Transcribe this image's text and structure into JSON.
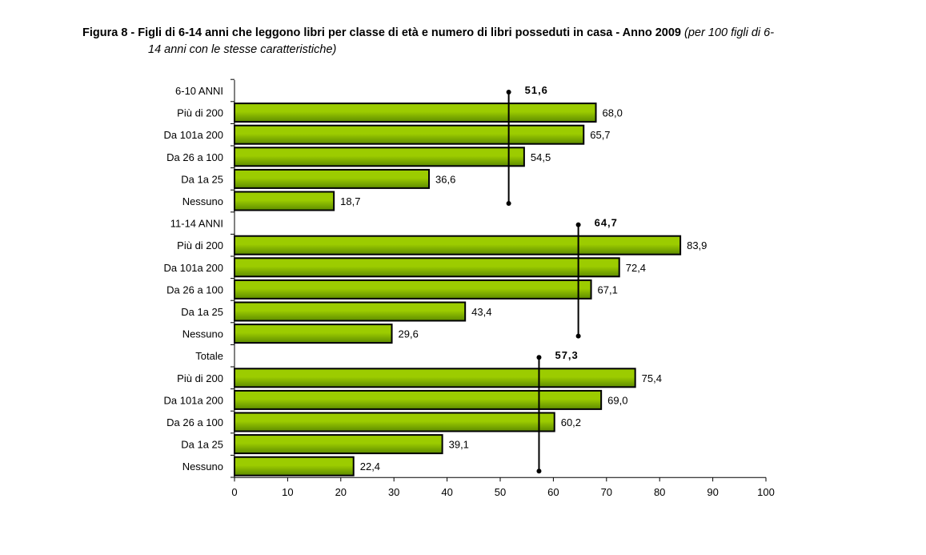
{
  "chart_data": {
    "type": "bar",
    "orientation": "horizontal",
    "title": "Figura 8 - Figli di 6-14 anni che leggono libri per classe di età e numero di libri posseduti in casa - Anno 2009",
    "subtitle_part1": "(per 100 figli di 6-",
    "subtitle_part2": "14 anni con le stesse caratteristiche)",
    "xlim": [
      0,
      100
    ],
    "xticks": [
      0,
      10,
      20,
      30,
      40,
      50,
      60,
      70,
      80,
      90,
      100
    ],
    "colors": {
      "bar_top": "#9ccc00",
      "bar_bottom": "#5e8c00",
      "border": "#000000"
    },
    "groups": [
      {
        "name": "6-10 ANNI",
        "mean": 51.6,
        "mean_label": "51,6",
        "categories": [
          "Più di 200",
          "Da 101a 200",
          "Da 26 a 100",
          "Da 1a 25",
          "Nessuno"
        ],
        "values": [
          68.0,
          65.7,
          54.5,
          36.6,
          18.7
        ],
        "labels": [
          "68,0",
          "65,7",
          "54,5",
          "36,6",
          "18,7"
        ]
      },
      {
        "name": "11-14 ANNI",
        "mean": 64.7,
        "mean_label": "64,7",
        "categories": [
          "Più di 200",
          "Da 101a 200",
          "Da 26 a 100",
          "Da 1a 25",
          "Nessuno"
        ],
        "values": [
          83.9,
          72.4,
          67.1,
          43.4,
          29.6
        ],
        "labels": [
          "83,9",
          "72,4",
          "67,1",
          "43,4",
          "29,6"
        ]
      },
      {
        "name": "Totale",
        "mean": 57.3,
        "mean_label": "57,3",
        "categories": [
          "Più di 200",
          "Da 101a 200",
          "Da 26 a 100",
          "Da 1a 25",
          "Nessuno"
        ],
        "values": [
          75.4,
          69.0,
          60.2,
          39.1,
          22.4
        ],
        "labels": [
          "75,4",
          "69,0",
          "60,2",
          "39,1",
          "22,4"
        ]
      }
    ]
  }
}
